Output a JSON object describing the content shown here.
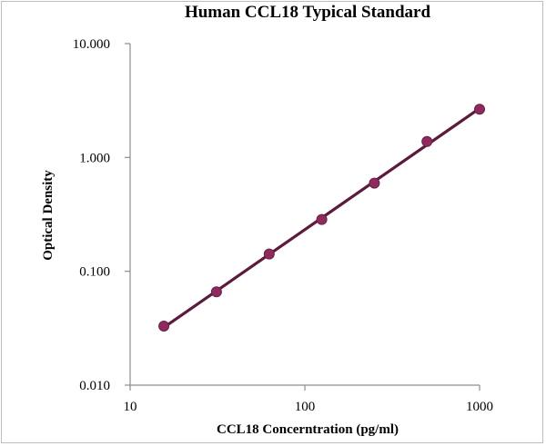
{
  "chart_data": {
    "type": "scatter",
    "title": "Human CCL18 Typical Standard",
    "xlabel": "CCL18 Concerntration (pg/ml)",
    "ylabel": "Optical Density",
    "xscale": "log",
    "yscale": "log",
    "xlim": [
      10,
      1000
    ],
    "ylim": [
      0.01,
      10
    ],
    "x_ticks": [
      "10",
      "100",
      "1000"
    ],
    "y_ticks": [
      "0.010",
      "0.100",
      "1.000",
      "10.000"
    ],
    "grid": false,
    "legend": "none",
    "trendline": "power fit",
    "series": [
      {
        "x": [
          15.6,
          31.2,
          62.5,
          125,
          250,
          500,
          1000
        ],
        "y": [
          0.033,
          0.066,
          0.142,
          0.285,
          0.595,
          1.38,
          2.65
        ]
      }
    ],
    "colors": {
      "marker": "#8e2a5e",
      "line": "#5c1a3c"
    }
  }
}
